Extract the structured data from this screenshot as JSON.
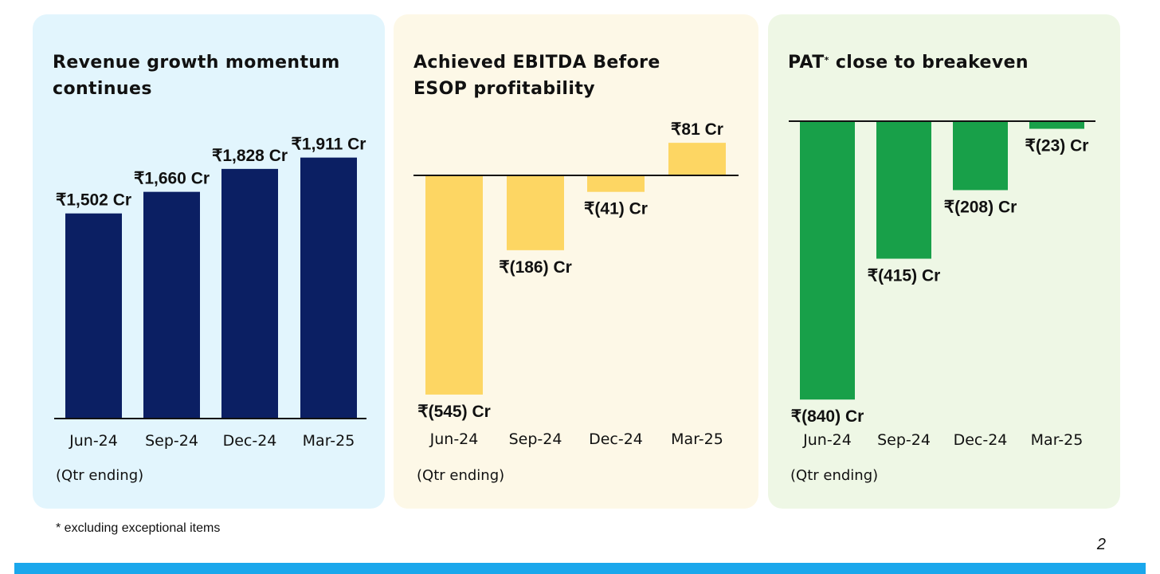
{
  "colors": {
    "revenue_card": "#e2f5fd",
    "ebitda_card": "#fdf8e7",
    "pat_card": "#eef7e5",
    "revenue_bar": "#0b1f63",
    "ebitda_bar": "#fdd663",
    "pat_bar": "#18a049",
    "accent_bar": "#1aa7ec"
  },
  "cards": {
    "revenue": {
      "title": "Revenue growth momentum continues",
      "note": "(Qtr ending)"
    },
    "ebitda": {
      "title": "Achieved EBITDA Before ESOP profitability",
      "note": "(Qtr ending)"
    },
    "pat": {
      "title_prefix": "PAT",
      "title_mark": "*",
      "title_suffix": " close to breakeven",
      "note": "(Qtr ending)"
    }
  },
  "footnote": "* excluding exceptional items",
  "page_number": "2",
  "chart_data": [
    {
      "type": "bar",
      "title": "Revenue growth momentum continues",
      "categories": [
        "Jun-24",
        "Sep-24",
        "Dec-24",
        "Mar-25"
      ],
      "values": [
        1502,
        1660,
        1828,
        1911
      ],
      "labels": [
        "₹1,502 Cr",
        "₹1,660 Cr",
        "₹1,828 Cr",
        "₹1,911 Cr"
      ],
      "xlabel": "(Qtr ending)",
      "ylabel": "",
      "grid": false
    },
    {
      "type": "bar",
      "title": "Achieved EBITDA Before ESOP profitability",
      "categories": [
        "Jun-24",
        "Sep-24",
        "Dec-24",
        "Mar-25"
      ],
      "values": [
        -545,
        -186,
        -41,
        81
      ],
      "labels": [
        "₹(545) Cr",
        "₹(186) Cr",
        "₹(41) Cr",
        "₹81 Cr"
      ],
      "xlabel": "(Qtr ending)",
      "ylabel": "",
      "grid": false
    },
    {
      "type": "bar",
      "title": "PAT* close to breakeven",
      "categories": [
        "Jun-24",
        "Sep-24",
        "Dec-24",
        "Mar-25"
      ],
      "values": [
        -840,
        -415,
        -208,
        -23
      ],
      "labels": [
        "₹(840) Cr",
        "₹(415) Cr",
        "₹(208) Cr",
        "₹(23) Cr"
      ],
      "xlabel": "(Qtr ending)",
      "ylabel": "",
      "grid": false
    }
  ]
}
